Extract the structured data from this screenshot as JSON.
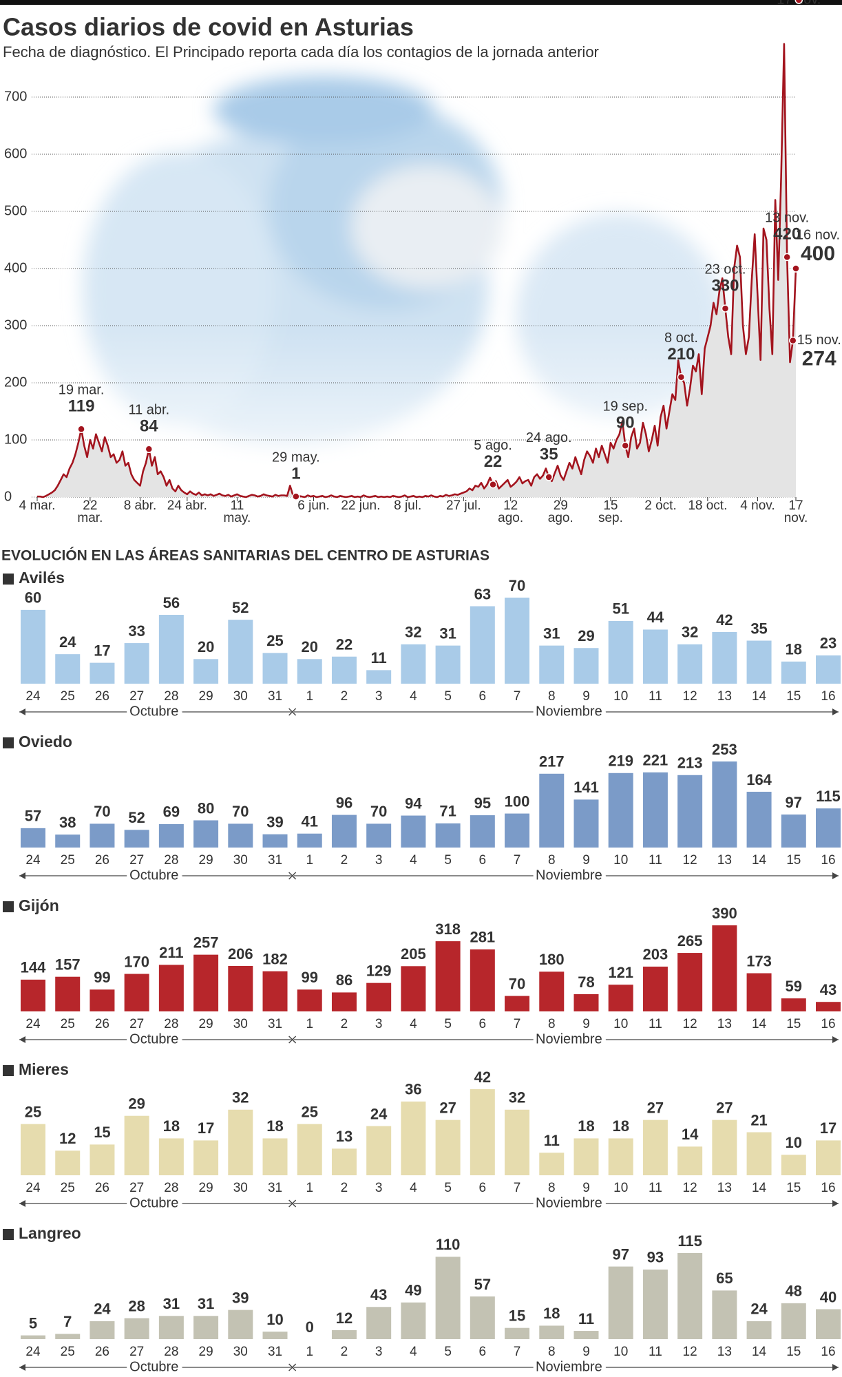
{
  "section": {
    "title": "EVOLUCIÓN EN LAS ÁREAS SANITARIAS DEL CENTRO DE ASTURIAS"
  },
  "chart_data": [
    {
      "type": "line",
      "title": "Casos diarios de covid en Asturias",
      "subtitle": "Fecha de diagnóstico. El Principado reporta cada día los contagios de la jornada anterior",
      "color": "#a3141e",
      "fill": "#e4e4e4",
      "grid": true,
      "ylim": [
        0,
        800
      ],
      "yticks": [
        0,
        100,
        200,
        300,
        400,
        500,
        600,
        700
      ],
      "categories": [
        "4 mar.",
        null,
        null,
        null,
        null,
        null,
        null,
        null,
        null,
        null,
        null,
        null,
        null,
        null,
        null,
        null,
        null,
        null,
        "22 mar.",
        null,
        null,
        null,
        null,
        null,
        null,
        null,
        null,
        null,
        null,
        null,
        null,
        null,
        null,
        null,
        null,
        "8 abr.",
        null,
        null,
        null,
        null,
        null,
        null,
        null,
        null,
        null,
        null,
        null,
        null,
        null,
        null,
        null,
        "24 abr.",
        null,
        null,
        null,
        null,
        null,
        null,
        null,
        null,
        null,
        null,
        null,
        null,
        null,
        null,
        null,
        null,
        "11 may.",
        null,
        null,
        null,
        null,
        null,
        null,
        null,
        null,
        null,
        null,
        null,
        null,
        null,
        null,
        null,
        null,
        null,
        null,
        null,
        null,
        null,
        null,
        null,
        null,
        null,
        "6 jun.",
        null,
        null,
        null,
        null,
        null,
        null,
        null,
        null,
        null,
        null,
        null,
        null,
        null,
        null,
        null,
        "22 jun.",
        null,
        null,
        null,
        null,
        null,
        null,
        null,
        null,
        null,
        null,
        null,
        null,
        null,
        null,
        null,
        "8 jul.",
        null,
        null,
        null,
        null,
        null,
        null,
        null,
        null,
        null,
        null,
        null,
        null,
        null,
        null,
        null,
        null,
        null,
        null,
        "27 jul.",
        null,
        null,
        null,
        null,
        null,
        null,
        null,
        null,
        null,
        null,
        null,
        null,
        null,
        null,
        null,
        "12 ago.",
        null,
        null,
        null,
        null,
        null,
        null,
        null,
        null,
        null,
        null,
        null,
        null,
        null,
        null,
        null,
        null,
        "29 ago.",
        null,
        null,
        null,
        null,
        null,
        null,
        null,
        null,
        null,
        null,
        null,
        null,
        null,
        null,
        null,
        null,
        "15 sep.",
        null,
        null,
        null,
        null,
        null,
        null,
        null,
        null,
        null,
        null,
        null,
        null,
        null,
        null,
        null,
        null,
        "2 oct.",
        null,
        null,
        null,
        null,
        null,
        null,
        null,
        null,
        null,
        null,
        null,
        null,
        null,
        null,
        null,
        "18 oct.",
        null,
        null,
        null,
        null,
        null,
        null,
        null,
        null,
        null,
        null,
        null,
        null,
        null,
        null,
        null,
        null,
        "4 nov.",
        null,
        null,
        null,
        null,
        null,
        null,
        null,
        null,
        null,
        null,
        null,
        null,
        "17 nov."
      ],
      "annotations": [
        null,
        null,
        null,
        null,
        null,
        null,
        null,
        null,
        null,
        null,
        null,
        null,
        null,
        null,
        null,
        "19 mar.",
        null,
        null,
        null,
        null,
        null,
        null,
        null,
        null,
        null,
        null,
        null,
        null,
        null,
        null,
        null,
        null,
        null,
        null,
        null,
        null,
        null,
        null,
        "11 abr.",
        null,
        null,
        null,
        null,
        null,
        null,
        null,
        null,
        null,
        null,
        null,
        null,
        null,
        null,
        null,
        null,
        null,
        null,
        null,
        null,
        null,
        null,
        null,
        null,
        null,
        null,
        null,
        null,
        null,
        null,
        null,
        null,
        null,
        null,
        null,
        null,
        null,
        null,
        null,
        null,
        null,
        null,
        null,
        null,
        null,
        null,
        null,
        null,
        null,
        "29 may.",
        null,
        null,
        null,
        null,
        null,
        null,
        null,
        null,
        null,
        null,
        null,
        null,
        null,
        null,
        null,
        null,
        null,
        null,
        null,
        null,
        null,
        null,
        null,
        null,
        null,
        null,
        null,
        null,
        null,
        null,
        null,
        null,
        null,
        null,
        null,
        null,
        null,
        null,
        null,
        null,
        null,
        null,
        null,
        null,
        null,
        null,
        null,
        null,
        null,
        null,
        null,
        null,
        null,
        null,
        null,
        null,
        null,
        null,
        null,
        null,
        null,
        null,
        null,
        null,
        null,
        null,
        "5 ago.",
        null,
        null,
        null,
        null,
        null,
        null,
        null,
        null,
        null,
        null,
        null,
        null,
        null,
        null,
        null,
        null,
        null,
        null,
        "24 ago.",
        null,
        null,
        null,
        null,
        null,
        null,
        null,
        null,
        null,
        null,
        null,
        null,
        null,
        null,
        null,
        null,
        null,
        null,
        null,
        null,
        null,
        null,
        null,
        null,
        null,
        "19 sep.",
        null,
        null,
        null,
        null,
        null,
        null,
        null,
        null,
        null,
        null,
        null,
        null,
        null,
        null,
        null,
        null,
        null,
        null,
        "8 oct.",
        null,
        null,
        null,
        null,
        null,
        null,
        null,
        null,
        null,
        null,
        null,
        null,
        null,
        null,
        "23 oct.",
        null,
        null,
        null,
        null,
        null,
        null,
        null,
        null,
        null,
        null,
        null,
        null,
        null,
        null,
        null,
        null,
        null,
        null,
        null,
        null,
        "13 nov.",
        null,
        "15 nov.",
        "16 nov.",
        "17 nov."
      ],
      "values": [
        1,
        1,
        0,
        2,
        5,
        8,
        12,
        20,
        30,
        40,
        35,
        50,
        60,
        75,
        95,
        119,
        90,
        70,
        100,
        85,
        110,
        95,
        80,
        105,
        90,
        70,
        75,
        60,
        65,
        80,
        55,
        60,
        40,
        30,
        25,
        20,
        45,
        60,
        84,
        55,
        70,
        40,
        45,
        35,
        20,
        30,
        15,
        10,
        20,
        12,
        8,
        5,
        10,
        6,
        4,
        8,
        3,
        5,
        3,
        5,
        2,
        4,
        6,
        3,
        2,
        4,
        1,
        3,
        5,
        2,
        1,
        0,
        2,
        4,
        3,
        1,
        2,
        5,
        3,
        2,
        1,
        4,
        2,
        3,
        3,
        2,
        20,
        3,
        1,
        2,
        1,
        0,
        3,
        1,
        2,
        0,
        1,
        2,
        0,
        1,
        3,
        1,
        0,
        2,
        1,
        0,
        1,
        2,
        0,
        1,
        0,
        3,
        1,
        0,
        1,
        2,
        0,
        1,
        0,
        1,
        0,
        2,
        1,
        0,
        1,
        3,
        0,
        1,
        2,
        0,
        1,
        0,
        2,
        1,
        3,
        1,
        0,
        2,
        1,
        4,
        2,
        3,
        5,
        4,
        6,
        8,
        10,
        15,
        12,
        20,
        18,
        25,
        15,
        22,
        34,
        22,
        28,
        15,
        20,
        25,
        30,
        18,
        22,
        27,
        35,
        24,
        28,
        30,
        20,
        35,
        40,
        32,
        38,
        50,
        35,
        28,
        42,
        55,
        38,
        30,
        45,
        60,
        50,
        70,
        55,
        40,
        65,
        80,
        72,
        60,
        85,
        70,
        90,
        75,
        60,
        95,
        85,
        100,
        110,
        133,
        90,
        70,
        105,
        120,
        85,
        95,
        130,
        110,
        80,
        100,
        125,
        90,
        140,
        160,
        120,
        150,
        180,
        170,
        239,
        210,
        200,
        160,
        190,
        230,
        220,
        250,
        180,
        260,
        280,
        300,
        340,
        320,
        360,
        383,
        330,
        280,
        250,
        400,
        440,
        420,
        300,
        250,
        280,
        380,
        460,
        350,
        240,
        470,
        450,
        330,
        250,
        520,
        380,
        560,
        793,
        420,
        236,
        274,
        400
      ]
    },
    {
      "type": "bar",
      "title": "Avilés",
      "color": "#a9cbe8",
      "categories": [
        "24",
        "25",
        "26",
        "27",
        "28",
        "29",
        "30",
        "31",
        "1",
        "2",
        "3",
        "4",
        "5",
        "6",
        "7",
        "8",
        "9",
        "10",
        "11",
        "12",
        "13",
        "14",
        "15",
        "16"
      ],
      "groups": [
        {
          "label": "Octubre",
          "from": "24",
          "to": "31"
        },
        {
          "label": "Noviembre",
          "from": "1",
          "to": "16"
        }
      ],
      "values": [
        60,
        24,
        17,
        33,
        56,
        20,
        52,
        25,
        20,
        22,
        11,
        32,
        31,
        63,
        70,
        31,
        29,
        51,
        44,
        32,
        42,
        35,
        18,
        23
      ]
    },
    {
      "type": "bar",
      "title": "Oviedo",
      "color": "#7b9bc8",
      "categories": [
        "24",
        "25",
        "26",
        "27",
        "28",
        "29",
        "30",
        "31",
        "1",
        "2",
        "3",
        "4",
        "5",
        "6",
        "7",
        "8",
        "9",
        "10",
        "11",
        "12",
        "13",
        "14",
        "15",
        "16"
      ],
      "groups": [
        {
          "label": "Octubre",
          "from": "24",
          "to": "31"
        },
        {
          "label": "Noviembre",
          "from": "1",
          "to": "16"
        }
      ],
      "values": [
        57,
        38,
        70,
        52,
        69,
        80,
        70,
        39,
        41,
        96,
        70,
        94,
        71,
        95,
        100,
        217,
        141,
        219,
        221,
        213,
        253,
        164,
        97,
        115
      ]
    },
    {
      "type": "bar",
      "title": "Gijón",
      "color": "#b7262b",
      "categories": [
        "24",
        "25",
        "26",
        "27",
        "28",
        "29",
        "30",
        "31",
        "1",
        "2",
        "3",
        "4",
        "5",
        "6",
        "7",
        "8",
        "9",
        "10",
        "11",
        "12",
        "13",
        "14",
        "15",
        "16"
      ],
      "groups": [
        {
          "label": "Octubre",
          "from": "24",
          "to": "31"
        },
        {
          "label": "Noviembre",
          "from": "1",
          "to": "16"
        }
      ],
      "values": [
        144,
        157,
        99,
        170,
        211,
        257,
        206,
        182,
        99,
        86,
        129,
        205,
        318,
        281,
        70,
        180,
        78,
        121,
        203,
        265,
        390,
        173,
        59,
        43
      ]
    },
    {
      "type": "bar",
      "title": "Mieres",
      "color": "#e6dcae",
      "categories": [
        "24",
        "25",
        "26",
        "27",
        "28",
        "29",
        "30",
        "31",
        "1",
        "2",
        "3",
        "4",
        "5",
        "6",
        "7",
        "8",
        "9",
        "10",
        "11",
        "12",
        "13",
        "14",
        "15",
        "16"
      ],
      "groups": [
        {
          "label": "Octubre",
          "from": "24",
          "to": "31"
        },
        {
          "label": "Noviembre",
          "from": "1",
          "to": "16"
        }
      ],
      "values": [
        25,
        12,
        15,
        29,
        18,
        17,
        32,
        18,
        25,
        13,
        24,
        36,
        27,
        42,
        32,
        11,
        18,
        18,
        27,
        14,
        27,
        21,
        10,
        17
      ]
    },
    {
      "type": "bar",
      "title": "Langreo",
      "color": "#c3c2b3",
      "categories": [
        "24",
        "25",
        "26",
        "27",
        "28",
        "29",
        "30",
        "31",
        "1",
        "2",
        "3",
        "4",
        "5",
        "6",
        "7",
        "8",
        "9",
        "10",
        "11",
        "12",
        "13",
        "14",
        "15",
        "16"
      ],
      "groups": [
        {
          "label": "Octubre",
          "from": "24",
          "to": "31"
        },
        {
          "label": "Noviembre",
          "from": "1",
          "to": "16"
        }
      ],
      "values": [
        5,
        7,
        24,
        28,
        31,
        31,
        39,
        10,
        0,
        12,
        43,
        49,
        110,
        57,
        15,
        18,
        11,
        97,
        93,
        115,
        65,
        24,
        48,
        40
      ]
    }
  ]
}
